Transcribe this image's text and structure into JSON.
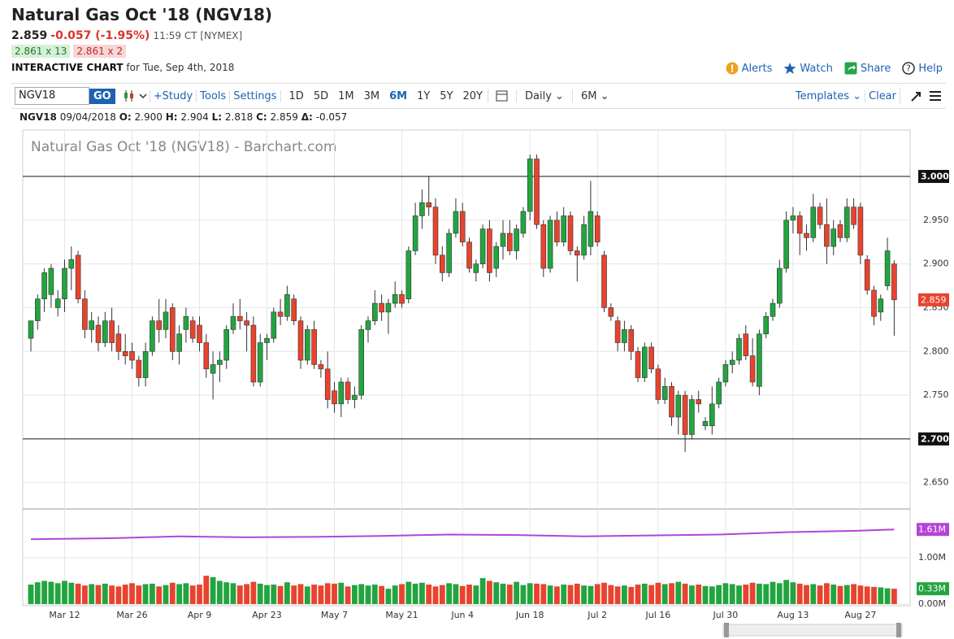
{
  "header": {
    "title": "Natural Gas Oct '18 (NGV18)",
    "last": "2.859",
    "change": "-0.057 (-1.95%)",
    "time": "11:59 CT [NYMEX]",
    "bid": "2.861 x 13",
    "ask": "2.861 x 2",
    "chart_label": "INTERACTIVE CHART",
    "date": "for Tue, Sep 4th, 2018",
    "links": [
      "Alerts",
      "Watch",
      "Share",
      "Help"
    ]
  },
  "toolbar": {
    "symbol": "NGV18",
    "go": "GO",
    "left": [
      "+Study",
      "Tools",
      "Settings"
    ],
    "periods": [
      "1D",
      "5D",
      "1M",
      "3M",
      "6M",
      "1Y",
      "5Y",
      "20Y"
    ],
    "active_period": "6M",
    "interval": "Daily",
    "range": "6M",
    "right": [
      "Templates",
      "Clear"
    ]
  },
  "info": {
    "symbol": "NGV18",
    "date": "09/04/2018",
    "fields": [
      [
        "O:",
        "2.900"
      ],
      [
        "H:",
        "2.904"
      ],
      [
        "L:",
        "2.818"
      ],
      [
        "C:",
        "2.859"
      ],
      [
        "Δ:",
        "-0.057"
      ]
    ]
  },
  "chart_data": {
    "type": "candlestick",
    "title": "Natural Gas Oct '18 (NGV18) - Barchart.com",
    "up_color": "#22a540",
    "down_color": "#e8432e",
    "grid": true,
    "categories": [
      null,
      null,
      null,
      null,
      null,
      "Mar 12",
      null,
      null,
      null,
      null,
      null,
      null,
      null,
      null,
      null,
      "Mar 26",
      null,
      null,
      null,
      null,
      null,
      null,
      null,
      null,
      null,
      "Apr 9",
      null,
      null,
      null,
      null,
      null,
      null,
      null,
      null,
      null,
      "Apr 23",
      null,
      null,
      null,
      null,
      null,
      null,
      null,
      null,
      null,
      "May 7",
      null,
      null,
      null,
      null,
      null,
      null,
      null,
      null,
      null,
      "May 21",
      null,
      null,
      null,
      null,
      null,
      null,
      null,
      null,
      "Jun 4",
      null,
      null,
      null,
      null,
      null,
      null,
      null,
      null,
      null,
      "Jun 18",
      null,
      null,
      null,
      null,
      null,
      null,
      null,
      null,
      null,
      "Jul 2",
      null,
      null,
      null,
      null,
      null,
      null,
      null,
      null,
      "Jul 16",
      null,
      null,
      null,
      null,
      null,
      null,
      null,
      null,
      null,
      "Jul 30",
      null,
      null,
      null,
      null,
      null,
      null,
      null,
      null,
      null,
      "Aug 13",
      null,
      null,
      null,
      null,
      null,
      null,
      null,
      null,
      null,
      "Aug 27",
      null,
      null,
      null,
      null,
      null
    ],
    "ohlc": [
      [
        2.815,
        2.835,
        2.8,
        2.835
      ],
      [
        2.835,
        2.865,
        2.825,
        2.86
      ],
      [
        2.86,
        2.895,
        2.845,
        2.89
      ],
      [
        2.865,
        2.9,
        2.85,
        2.895
      ],
      [
        2.85,
        2.87,
        2.84,
        2.86
      ],
      [
        2.86,
        2.905,
        2.845,
        2.895
      ],
      [
        2.895,
        2.92,
        2.87,
        2.905
      ],
      [
        2.91,
        2.915,
        2.855,
        2.86
      ],
      [
        2.86,
        2.87,
        2.815,
        2.825
      ],
      [
        2.825,
        2.845,
        2.81,
        2.835
      ],
      [
        2.83,
        2.84,
        2.8,
        2.81
      ],
      [
        2.81,
        2.845,
        2.805,
        2.835
      ],
      [
        2.835,
        2.85,
        2.8,
        2.81
      ],
      [
        2.82,
        2.83,
        2.79,
        2.8
      ],
      [
        2.8,
        2.82,
        2.785,
        2.795
      ],
      [
        2.8,
        2.81,
        2.78,
        2.79
      ],
      [
        2.79,
        2.795,
        2.76,
        2.77
      ],
      [
        2.77,
        2.81,
        2.76,
        2.8
      ],
      [
        2.8,
        2.84,
        2.795,
        2.835
      ],
      [
        2.835,
        2.86,
        2.81,
        2.825
      ],
      [
        2.825,
        2.86,
        2.815,
        2.845
      ],
      [
        2.85,
        2.855,
        2.79,
        2.8
      ],
      [
        2.8,
        2.83,
        2.785,
        2.82
      ],
      [
        2.825,
        2.85,
        2.81,
        2.84
      ],
      [
        2.835,
        2.84,
        2.81,
        2.815
      ],
      [
        2.83,
        2.84,
        2.8,
        2.81
      ],
      [
        2.81,
        2.82,
        2.77,
        2.78
      ],
      [
        2.775,
        2.8,
        2.745,
        2.785
      ],
      [
        2.785,
        2.8,
        2.765,
        2.79
      ],
      [
        2.79,
        2.83,
        2.78,
        2.825
      ],
      [
        2.825,
        2.855,
        2.82,
        2.84
      ],
      [
        2.84,
        2.86,
        2.825,
        2.835
      ],
      [
        2.835,
        2.845,
        2.8,
        2.83
      ],
      [
        2.83,
        2.84,
        2.76,
        2.765
      ],
      [
        2.765,
        2.82,
        2.76,
        2.81
      ],
      [
        2.81,
        2.82,
        2.79,
        2.815
      ],
      [
        2.815,
        2.85,
        2.81,
        2.845
      ],
      [
        2.845,
        2.86,
        2.83,
        2.84
      ],
      [
        2.84,
        2.875,
        2.835,
        2.865
      ],
      [
        2.86,
        2.865,
        2.83,
        2.835
      ],
      [
        2.835,
        2.84,
        2.78,
        2.79
      ],
      [
        2.79,
        2.83,
        2.785,
        2.825
      ],
      [
        2.825,
        2.835,
        2.78,
        2.785
      ],
      [
        2.785,
        2.79,
        2.77,
        2.78
      ],
      [
        2.78,
        2.8,
        2.735,
        2.745
      ],
      [
        2.755,
        2.765,
        2.73,
        2.74
      ],
      [
        2.74,
        2.77,
        2.725,
        2.765
      ],
      [
        2.765,
        2.77,
        2.74,
        2.745
      ],
      [
        2.745,
        2.76,
        2.735,
        2.75
      ],
      [
        2.75,
        2.83,
        2.745,
        2.825
      ],
      [
        2.825,
        2.84,
        2.81,
        2.835
      ],
      [
        2.835,
        2.87,
        2.83,
        2.855
      ],
      [
        2.855,
        2.865,
        2.835,
        2.845
      ],
      [
        2.845,
        2.86,
        2.82,
        2.855
      ],
      [
        2.855,
        2.88,
        2.85,
        2.865
      ],
      [
        2.865,
        2.87,
        2.85,
        2.855
      ],
      [
        2.86,
        2.92,
        2.855,
        2.915
      ],
      [
        2.915,
        2.97,
        2.91,
        2.955
      ],
      [
        2.955,
        2.985,
        2.94,
        2.97
      ],
      [
        2.97,
        3.0,
        2.955,
        2.965
      ],
      [
        2.965,
        2.975,
        2.9,
        2.91
      ],
      [
        2.91,
        2.92,
        2.88,
        2.89
      ],
      [
        2.89,
        2.94,
        2.885,
        2.935
      ],
      [
        2.935,
        2.975,
        2.93,
        2.96
      ],
      [
        2.96,
        2.97,
        2.92,
        2.925
      ],
      [
        2.925,
        2.93,
        2.89,
        2.895
      ],
      [
        2.89,
        2.905,
        2.88,
        2.9
      ],
      [
        2.9,
        2.945,
        2.895,
        2.94
      ],
      [
        2.94,
        2.95,
        2.88,
        2.89
      ],
      [
        2.895,
        2.925,
        2.885,
        2.92
      ],
      [
        2.92,
        2.95,
        2.905,
        2.935
      ],
      [
        2.935,
        2.95,
        2.91,
        2.915
      ],
      [
        2.915,
        2.945,
        2.905,
        2.94
      ],
      [
        2.935,
        2.965,
        2.93,
        2.96
      ],
      [
        2.96,
        3.025,
        2.95,
        3.02
      ],
      [
        3.02,
        3.025,
        2.94,
        2.945
      ],
      [
        2.945,
        2.95,
        2.885,
        2.895
      ],
      [
        2.895,
        2.955,
        2.89,
        2.95
      ],
      [
        2.95,
        2.96,
        2.92,
        2.925
      ],
      [
        2.925,
        2.965,
        2.92,
        2.955
      ],
      [
        2.955,
        2.96,
        2.91,
        2.915
      ],
      [
        2.915,
        2.92,
        2.88,
        2.91
      ],
      [
        2.91,
        2.955,
        2.905,
        2.945
      ],
      [
        2.92,
        2.995,
        2.91,
        2.96
      ],
      [
        2.955,
        2.96,
        2.92,
        2.925
      ],
      [
        2.91,
        2.915,
        2.845,
        2.85
      ],
      [
        2.85,
        2.855,
        2.835,
        2.84
      ],
      [
        2.835,
        2.84,
        2.8,
        2.81
      ],
      [
        2.81,
        2.835,
        2.8,
        2.825
      ],
      [
        2.825,
        2.83,
        2.79,
        2.8
      ],
      [
        2.8,
        2.805,
        2.765,
        2.77
      ],
      [
        2.77,
        2.81,
        2.765,
        2.805
      ],
      [
        2.805,
        2.81,
        2.775,
        2.78
      ],
      [
        2.78,
        2.785,
        2.74,
        2.745
      ],
      [
        2.745,
        2.77,
        2.74,
        2.76
      ],
      [
        2.76,
        2.765,
        2.715,
        2.725
      ],
      [
        2.725,
        2.755,
        2.705,
        2.75
      ],
      [
        2.75,
        2.755,
        2.685,
        2.705
      ],
      [
        2.705,
        2.75,
        2.7,
        2.745
      ],
      [
        2.745,
        2.755,
        2.73,
        2.74
      ],
      [
        2.715,
        2.725,
        2.71,
        2.72
      ],
      [
        2.715,
        2.76,
        2.705,
        2.74
      ],
      [
        2.74,
        2.77,
        2.735,
        2.765
      ],
      [
        2.765,
        2.79,
        2.76,
        2.785
      ],
      [
        2.785,
        2.8,
        2.775,
        2.79
      ],
      [
        2.79,
        2.82,
        2.785,
        2.815
      ],
      [
        2.82,
        2.83,
        2.79,
        2.795
      ],
      [
        2.795,
        2.815,
        2.76,
        2.765
      ],
      [
        2.76,
        2.825,
        2.75,
        2.82
      ],
      [
        2.82,
        2.845,
        2.815,
        2.84
      ],
      [
        2.84,
        2.86,
        2.835,
        2.855
      ],
      [
        2.855,
        2.905,
        2.85,
        2.895
      ],
      [
        2.895,
        2.96,
        2.89,
        2.95
      ],
      [
        2.95,
        2.965,
        2.935,
        2.955
      ],
      [
        2.955,
        2.96,
        2.91,
        2.935
      ],
      [
        2.935,
        2.945,
        2.915,
        2.93
      ],
      [
        2.93,
        2.98,
        2.925,
        2.965
      ],
      [
        2.965,
        2.97,
        2.94,
        2.945
      ],
      [
        2.945,
        2.975,
        2.9,
        2.92
      ],
      [
        2.92,
        2.95,
        2.91,
        2.94
      ],
      [
        2.945,
        2.95,
        2.925,
        2.93
      ],
      [
        2.93,
        2.975,
        2.925,
        2.965
      ],
      [
        2.965,
        2.975,
        2.94,
        2.945
      ],
      [
        2.965,
        2.97,
        2.9,
        2.91
      ],
      [
        2.905,
        2.91,
        2.865,
        2.87
      ],
      [
        2.87,
        2.875,
        2.83,
        2.84
      ],
      [
        2.845,
        2.865,
        2.835,
        2.86
      ],
      [
        2.875,
        2.93,
        2.87,
        2.915
      ],
      [
        2.9,
        2.904,
        2.818,
        2.859
      ]
    ],
    "last_label": "2.859",
    "ylim": [
      2.62,
      3.053
    ],
    "yticks": [
      {
        "value": 2.65,
        "label": "2.650"
      },
      {
        "value": 2.75,
        "label": "2.750"
      },
      {
        "value": 2.8,
        "label": "2.800"
      },
      {
        "value": 2.85,
        "label": "2.850"
      },
      {
        "value": 2.9,
        "label": "2.900"
      },
      {
        "value": 2.95,
        "label": "2.950"
      }
    ],
    "hlines": [
      {
        "value": 3.0,
        "label": "3.000"
      },
      {
        "value": 2.7,
        "label": "2.700"
      }
    ],
    "volume": [
      0.42,
      0.47,
      0.5,
      0.48,
      0.45,
      0.5,
      0.46,
      0.44,
      0.4,
      0.43,
      0.41,
      0.44,
      0.4,
      0.38,
      0.42,
      0.45,
      0.4,
      0.43,
      0.44,
      0.38,
      0.41,
      0.46,
      0.43,
      0.45,
      0.4,
      0.42,
      0.61,
      0.58,
      0.5,
      0.47,
      0.45,
      0.4,
      0.43,
      0.48,
      0.44,
      0.41,
      0.42,
      0.39,
      0.47,
      0.4,
      0.43,
      0.38,
      0.42,
      0.4,
      0.45,
      0.44,
      0.46,
      0.38,
      0.41,
      0.43,
      0.4,
      0.42,
      0.39,
      0.33,
      0.4,
      0.43,
      0.48,
      0.44,
      0.46,
      0.42,
      0.38,
      0.41,
      0.45,
      0.43,
      0.39,
      0.42,
      0.4,
      0.56,
      0.5,
      0.47,
      0.44,
      0.42,
      0.48,
      0.41,
      0.45,
      0.44,
      0.43,
      0.4,
      0.38,
      0.42,
      0.41,
      0.44,
      0.4,
      0.39,
      0.43,
      0.46,
      0.41,
      0.38,
      0.4,
      0.37,
      0.42,
      0.44,
      0.41,
      0.46,
      0.43,
      0.45,
      0.48,
      0.44,
      0.4,
      0.42,
      0.39,
      0.38,
      0.41,
      0.45,
      0.43,
      0.4,
      0.42,
      0.46,
      0.44,
      0.43,
      0.48,
      0.45,
      0.52,
      0.47,
      0.44,
      0.41,
      0.43,
      0.4,
      0.45,
      0.42,
      0.39,
      0.41,
      0.43,
      0.4,
      0.38,
      0.37,
      0.36,
      0.34,
      0.33
    ],
    "volume_last_label": "0.33M",
    "volume_lim": [
      0,
      2.0
    ],
    "volume_ticks": [
      {
        "value": 0,
        "label": "0.00M"
      },
      {
        "value": 1,
        "label": "1.00M"
      }
    ],
    "line": {
      "color": "#b444d6",
      "x": [
        0,
        12,
        22,
        32,
        42,
        52,
        62,
        72,
        82,
        92,
        102,
        112,
        122,
        128
      ],
      "values": [
        1.4,
        1.42,
        1.46,
        1.44,
        1.45,
        1.47,
        1.5,
        1.49,
        1.46,
        1.48,
        1.5,
        1.55,
        1.58,
        1.61
      ],
      "last_label": "1.61M"
    }
  }
}
